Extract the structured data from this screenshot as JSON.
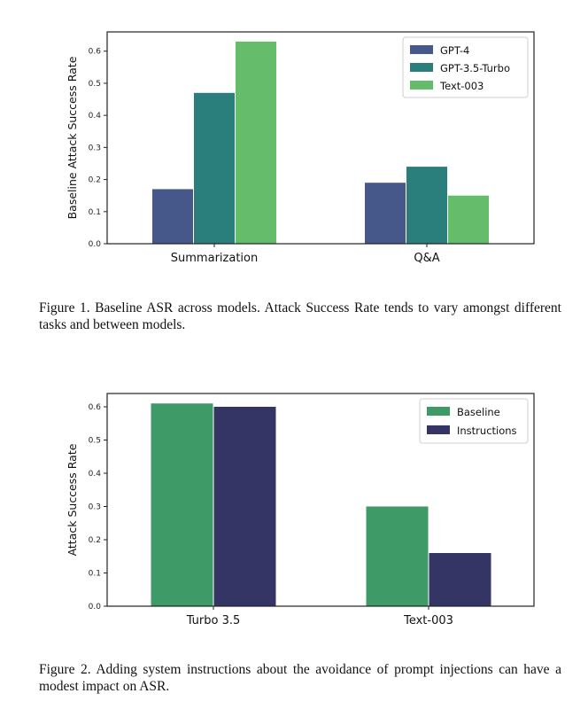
{
  "figures": [
    {
      "caption": "Figure 1. Baseline ASR across models. Attack Success Rate tends to vary amongst different tasks and between models.",
      "chart_data": {
        "type": "bar",
        "categories": [
          "Summarization",
          "Q&A"
        ],
        "series": [
          {
            "name": "GPT-4",
            "values": [
              0.17,
              0.19
            ],
            "color": "#46578a"
          },
          {
            "name": "GPT-3.5-Turbo",
            "values": [
              0.47,
              0.24
            ],
            "color": "#2a7f7c"
          },
          {
            "name": "Text-003",
            "values": [
              0.63,
              0.15
            ],
            "color": "#65bd6b"
          }
        ],
        "xlabel": "",
        "ylabel": "Baseline Attack Success Rate",
        "ylim": [
          0,
          0.66
        ],
        "yticks": [
          "0.0",
          "0.1",
          "0.2",
          "0.3",
          "0.4",
          "0.5",
          "0.6"
        ],
        "legend": "top-right",
        "grid": false
      }
    },
    {
      "caption": "Figure 2. Adding system instructions about the avoidance of prompt injections can have a modest impact on ASR.",
      "chart_data": {
        "type": "bar",
        "categories": [
          "Turbo 3.5",
          "Text-003"
        ],
        "series": [
          {
            "name": "Baseline",
            "values": [
              0.61,
              0.3
            ],
            "color": "#3e9a66"
          },
          {
            "name": "Instructions",
            "values": [
              0.6,
              0.16
            ],
            "color": "#353565"
          }
        ],
        "xlabel": "",
        "ylabel": "Attack Success Rate",
        "ylim": [
          0,
          0.64
        ],
        "yticks": [
          "0.0",
          "0.1",
          "0.2",
          "0.3",
          "0.4",
          "0.5",
          "0.6"
        ],
        "legend": "top-right",
        "grid": false
      }
    }
  ]
}
